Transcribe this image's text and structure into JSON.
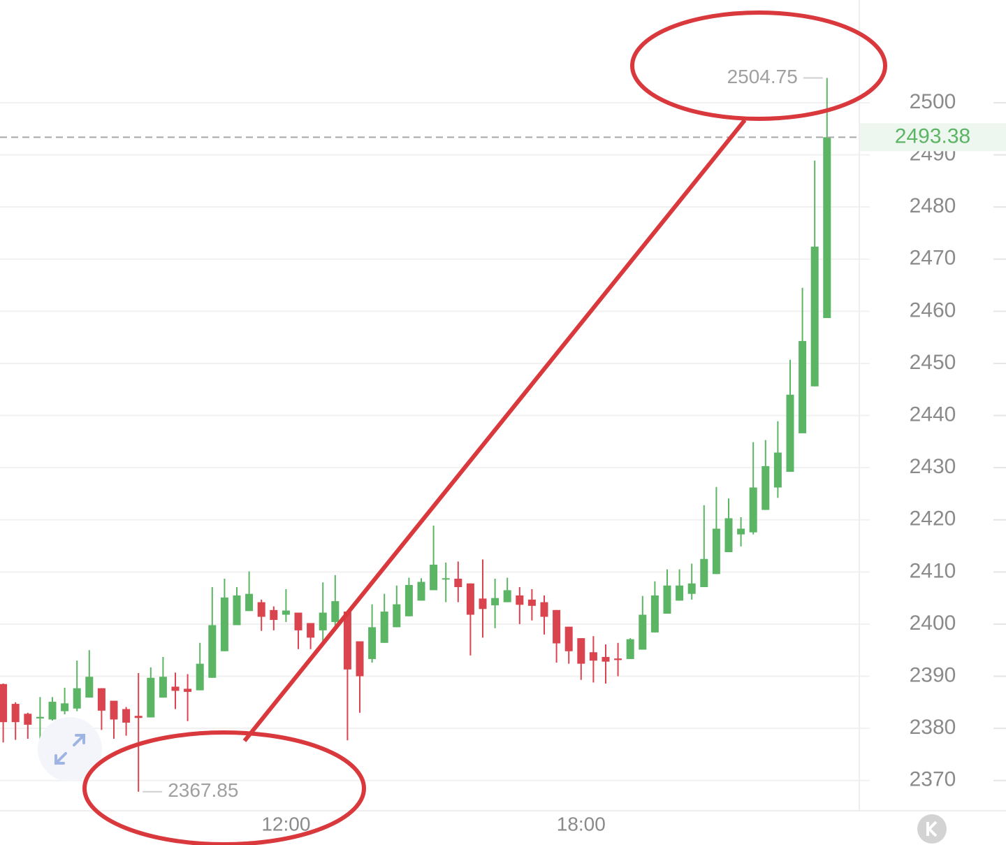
{
  "chart_data": {
    "type": "candlestick",
    "categories": [
      null,
      null,
      null,
      null,
      null,
      null,
      null,
      null,
      null,
      null,
      null,
      null,
      null,
      null,
      null,
      null,
      null,
      null,
      null,
      null,
      null,
      null,
      null,
      "12:00",
      null,
      null,
      null,
      null,
      null,
      null,
      null,
      null,
      null,
      null,
      null,
      null,
      null,
      null,
      null,
      null,
      null,
      null,
      null,
      null,
      null,
      null,
      null,
      "18:00",
      null,
      null,
      null,
      null,
      null,
      null,
      null,
      null,
      null,
      null,
      null,
      null,
      null,
      null,
      null,
      null,
      null,
      null,
      null,
      null
    ],
    "open": [
      2388.5,
      2384.7,
      2382.8,
      2381.9,
      2381.7,
      2383.3,
      2383.8,
      2385.9,
      2387.7,
      2385.3,
      2383.7,
      2382.4,
      2382.1,
      2385.9,
      2388,
      2387.6,
      2387.3,
      2389.7,
      2394.8,
      2399.8,
      2402.5,
      2404.2,
      2402.7,
      2401.8,
      2402.2,
      2400.2,
      2398.8,
      2400.4,
      2402.4,
      2396.7,
      2393.3,
      2396.4,
      2399.4,
      2401.5,
      2404.5,
      2406.5,
      2408.7,
      2408.7,
      2407.8,
      2404.9,
      2403.6,
      2404.2,
      2405.5,
      2404.7,
      2404.2,
      2402.7,
      2399.5,
      2397.3,
      2394.6,
      2393.7,
      2393.4,
      2393.3,
      2395.1,
      2398.4,
      2402,
      2404.5,
      2405.8,
      2407.1,
      2409.6,
      2413.8,
      2417.2,
      2417.6,
      2421.9,
      2426.2,
      2429.2,
      2436.6,
      2445.6,
      2458.7
    ],
    "high": [
      2388.6,
      2385,
      2383,
      2386,
      2386,
      2387.8,
      2393,
      2395,
      2387.7,
      2385.3,
      2384.1,
      2390.6,
      2391.7,
      2393.7,
      2390.7,
      2390.4,
      2396.4,
      2407.1,
      2408.7,
      2407.1,
      2410.1,
      2404.7,
      2403.4,
      2406.7,
      2402.2,
      2400.2,
      2408,
      2409.4,
      2402.4,
      2396.7,
      2403.8,
      2405.8,
      2407.4,
      2408.9,
      2408.8,
      2418.9,
      2411.8,
      2412,
      2407.8,
      2412.4,
      2408.7,
      2408.9,
      2407.1,
      2406.7,
      2405.5,
      2402.7,
      2399.5,
      2397.3,
      2397.7,
      2396.1,
      2396.4,
      2397.3,
      2405.4,
      2408.2,
      2410.5,
      2410.5,
      2411.6,
      2422.8,
      2426.3,
      2424.1,
      2420.5,
      2434.9,
      2435.3,
      2438.9,
      2450.7,
      2464.5,
      2488.9,
      2504.75
    ],
    "low": [
      2377.3,
      2377.8,
      2378,
      2376.4,
      2381.5,
      2382.7,
      2383.3,
      2385.9,
      2379.7,
      2378,
      2378.6,
      2367.85,
      2382.1,
      2385.9,
      2383.7,
      2381.4,
      2387.3,
      2389.7,
      2394.8,
      2399.8,
      2402.5,
      2398.7,
      2398.8,
      2400.4,
      2395.2,
      2395.2,
      2396.7,
      2398.7,
      2377.7,
      2383,
      2392.6,
      2396.4,
      2399.4,
      2401.5,
      2404.5,
      2406.5,
      2404.2,
      2404.2,
      2394,
      2397.4,
      2399.2,
      2404.2,
      2400,
      2400.7,
      2398,
      2392.6,
      2392.4,
      2389.3,
      2388.8,
      2388.6,
      2390,
      2393.3,
      2395.1,
      2398.4,
      2402,
      2404.5,
      2404.7,
      2407.1,
      2409.6,
      2413.8,
      2414.9,
      2417.2,
      2421.9,
      2424.2,
      2429.2,
      2436.6,
      2445.6,
      2458.7
    ],
    "close": [
      2381.2,
      2381.2,
      2380.7,
      2382.2,
      2385.1,
      2384.8,
      2387.7,
      2389.9,
      2383.4,
      2381.7,
      2381.1,
      2382,
      2389.7,
      2389.9,
      2387.2,
      2387,
      2392.4,
      2399.8,
      2405.1,
      2405.5,
      2405.8,
      2401.4,
      2400.8,
      2402.6,
      2398.8,
      2397.4,
      2402.2,
      2404.4,
      2391.3,
      2390,
      2399.4,
      2402.4,
      2403.8,
      2407.5,
      2408.1,
      2411.4,
      2408.8,
      2407.1,
      2401.8,
      2402.9,
      2405,
      2406.5,
      2403.7,
      2403.5,
      2401.4,
      2396.3,
      2394.8,
      2392.4,
      2393,
      2392.8,
      2393.1,
      2397.1,
      2401.8,
      2405.5,
      2407.4,
      2407.4,
      2407.8,
      2412.5,
      2418.3,
      2420.3,
      2418.3,
      2426.2,
      2430.3,
      2432.9,
      2444,
      2454.3,
      2472.4,
      2493.38
    ],
    "up_color": "#5cb465",
    "down_color": "#d9444f",
    "ylim": [
      2364.2,
      2519.7
    ],
    "yticks": [
      2370,
      2380,
      2390,
      2400,
      2410,
      2420,
      2430,
      2440,
      2450,
      2460,
      2470,
      2480,
      2490,
      2500
    ],
    "grid": true
  }
}
